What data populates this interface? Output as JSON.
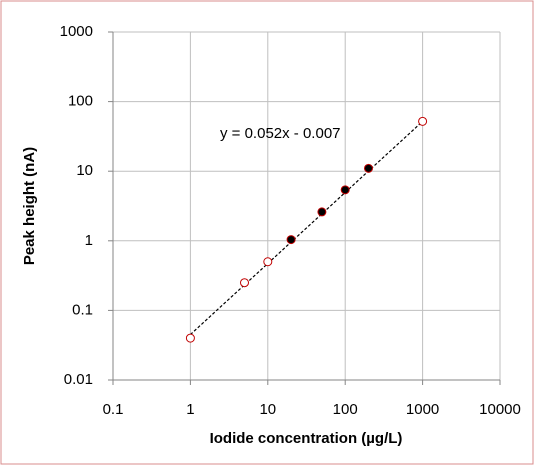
{
  "chart_data": {
    "type": "scatter",
    "x_label": "Iodide concentration (µg/L)",
    "y_label": "Peak height (nA)",
    "annotation": "y = 0.052x - 0.007",
    "xscale": "log",
    "yscale": "log",
    "grid": true,
    "xlim": [
      0.1,
      10000
    ],
    "ylim": [
      0.01,
      1000
    ],
    "xticks": [
      0.1,
      1,
      10,
      100,
      1000,
      10000
    ],
    "yticks": [
      0.01,
      0.1,
      1,
      10,
      100,
      1000
    ],
    "series": [
      {
        "marker": "open",
        "color": "#c00000",
        "x": [
          1,
          5,
          10,
          1000
        ],
        "values": [
          0.04,
          0.25,
          0.5,
          52
        ]
      },
      {
        "marker": "filled",
        "color": "#000000",
        "edgecolor": "#c00000",
        "x": [
          20,
          50,
          100,
          200
        ],
        "values": [
          1.04,
          2.6,
          5.4,
          11
        ]
      }
    ],
    "trendline": {
      "color": "#000000",
      "x": [
        1,
        1000
      ],
      "values": [
        0.045,
        52
      ]
    }
  }
}
